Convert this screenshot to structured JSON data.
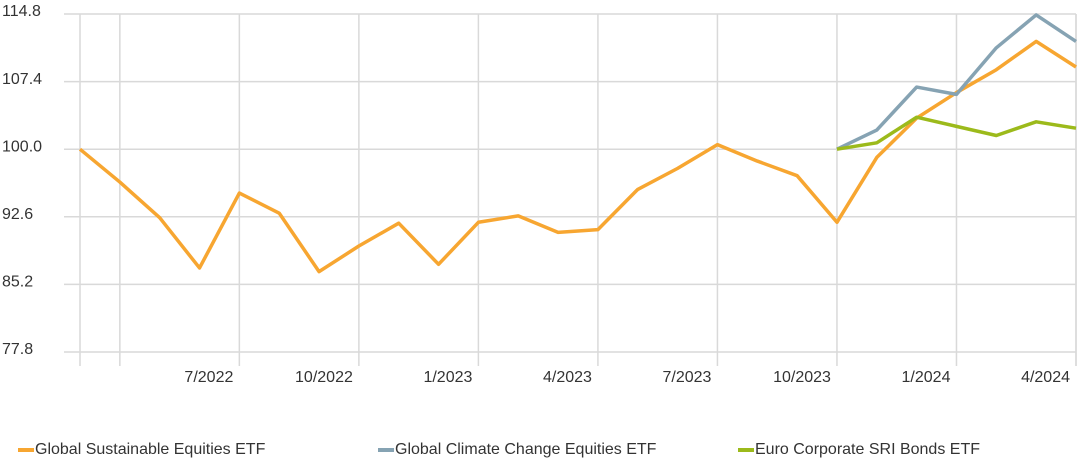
{
  "chart_data": {
    "type": "line",
    "categories": [
      null,
      null,
      null,
      null,
      "7/2022",
      null,
      null,
      "10/2022",
      null,
      null,
      "1/2023",
      null,
      null,
      "4/2023",
      null,
      null,
      "7/2023",
      null,
      null,
      "10/2023",
      null,
      null,
      "1/2024",
      null,
      null,
      "4/2024"
    ],
    "series": [
      {
        "name": "Global Sustainable Equities ETF",
        "color": "#f7a631",
        "values": [
          100,
          96.4,
          92.5,
          87.0,
          95.2,
          93.0,
          86.6,
          89.4,
          91.9,
          87.4,
          92.0,
          92.7,
          90.9,
          91.2,
          95.6,
          97.9,
          100.5,
          98.7,
          97.1,
          92.0,
          99.1,
          103.4,
          106.2,
          108.7,
          111.8,
          109.0
        ]
      },
      {
        "name": "Global Climate Change Equities ETF",
        "color": "#86a3b3",
        "values": [
          null,
          null,
          null,
          null,
          null,
          null,
          null,
          null,
          null,
          null,
          null,
          null,
          null,
          null,
          null,
          null,
          null,
          null,
          null,
          100,
          102.1,
          106.8,
          106.0,
          111.1,
          114.7,
          111.8
        ]
      },
      {
        "name": "Euro Corporate SRI Bonds ETF",
        "color": "#9cba1b",
        "values": [
          null,
          null,
          null,
          null,
          null,
          null,
          null,
          null,
          null,
          null,
          null,
          null,
          null,
          null,
          null,
          null,
          null,
          null,
          null,
          100,
          100.7,
          103.5,
          102.5,
          101.5,
          103.0,
          102.3
        ]
      }
    ],
    "ylim": [
      77.8,
      114.8
    ],
    "yticks": [
      77.8,
      85.2,
      92.6,
      {
        "value": 100,
        "label": "100.0"
      },
      107.4,
      114.8
    ],
    "grid": true,
    "legend": "bottom"
  }
}
